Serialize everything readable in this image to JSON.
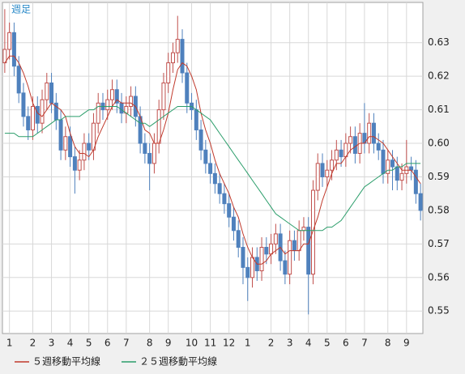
{
  "chart_data": {
    "type": "candlestick",
    "label": "週足",
    "categories": [
      null,
      "1",
      null,
      null,
      null,
      null,
      "2",
      null,
      null,
      null,
      "3",
      null,
      null,
      null,
      "4",
      null,
      null,
      null,
      "5",
      null,
      null,
      null,
      "6",
      null,
      null,
      null,
      "7",
      null,
      null,
      null,
      null,
      "8",
      null,
      null,
      null,
      "9",
      null,
      null,
      null,
      null,
      "10",
      null,
      null,
      null,
      "11",
      null,
      null,
      null,
      "12",
      null,
      null,
      null,
      "1",
      null,
      null,
      null,
      null,
      "2",
      null,
      null,
      null,
      "3",
      null,
      null,
      null,
      "4",
      null,
      null,
      null,
      "5",
      null,
      null,
      null,
      "6",
      null,
      null,
      null,
      "7",
      null,
      null,
      null,
      null,
      "8",
      null,
      null,
      null,
      "9",
      null,
      null,
      null
    ],
    "open": [
      0.624,
      0.628,
      0.633,
      0.623,
      0.615,
      0.608,
      0.604,
      0.611,
      0.606,
      0.613,
      0.618,
      0.612,
      0.607,
      0.598,
      0.602,
      0.596,
      0.592,
      0.595,
      0.6,
      0.598,
      0.606,
      0.612,
      0.61,
      0.613,
      0.616,
      0.612,
      0.609,
      0.611,
      0.614,
      0.608,
      0.6,
      0.597,
      0.594,
      0.6,
      0.61,
      0.618,
      0.624,
      0.627,
      0.631,
      0.621,
      0.612,
      0.61,
      0.604,
      0.598,
      0.594,
      0.591,
      0.588,
      0.585,
      0.582,
      0.578,
      0.574,
      0.569,
      0.563,
      0.56,
      0.566,
      0.562,
      0.569,
      0.567,
      0.57,
      0.573,
      0.565,
      0.561,
      0.571,
      0.568,
      0.574,
      0.575,
      0.561,
      0.586,
      0.594,
      0.59,
      0.592,
      0.595,
      0.598,
      0.596,
      0.6,
      0.602,
      0.597,
      0.603,
      0.6,
      0.606,
      0.6,
      0.598,
      0.591,
      0.595,
      0.593,
      0.589,
      0.591,
      0.593,
      0.592,
      0.585
    ],
    "high": [
      0.64,
      0.636,
      0.636,
      0.626,
      0.618,
      0.611,
      0.614,
      0.614,
      0.616,
      0.621,
      0.621,
      0.615,
      0.61,
      0.605,
      0.605,
      0.599,
      0.598,
      0.603,
      0.603,
      0.609,
      0.615,
      0.615,
      0.616,
      0.619,
      0.619,
      0.615,
      0.614,
      0.617,
      0.617,
      0.611,
      0.603,
      0.6,
      0.603,
      0.613,
      0.621,
      0.627,
      0.63,
      0.638,
      0.634,
      0.624,
      0.615,
      0.613,
      0.607,
      0.601,
      0.597,
      0.594,
      0.591,
      0.588,
      0.585,
      0.581,
      0.577,
      0.572,
      0.566,
      0.569,
      0.569,
      0.572,
      0.572,
      0.573,
      0.576,
      0.576,
      0.568,
      0.574,
      0.574,
      0.577,
      0.578,
      0.578,
      0.589,
      0.597,
      0.597,
      0.595,
      0.598,
      0.601,
      0.601,
      0.603,
      0.605,
      0.605,
      0.606,
      0.612,
      0.609,
      0.609,
      0.603,
      0.601,
      0.598,
      0.598,
      0.596,
      0.594,
      0.601,
      0.596,
      0.595,
      0.588
    ],
    "low": [
      0.621,
      0.625,
      0.62,
      0.612,
      0.605,
      0.601,
      0.601,
      0.603,
      0.603,
      0.61,
      0.609,
      0.604,
      0.595,
      0.595,
      0.593,
      0.585,
      0.589,
      0.592,
      0.595,
      0.595,
      0.603,
      0.607,
      0.607,
      0.61,
      0.609,
      0.606,
      0.606,
      0.608,
      0.605,
      0.597,
      0.594,
      0.586,
      0.591,
      0.597,
      0.607,
      0.615,
      0.621,
      0.624,
      0.618,
      0.609,
      0.607,
      0.601,
      0.595,
      0.591,
      0.588,
      0.585,
      0.582,
      0.579,
      0.575,
      0.571,
      0.566,
      0.558,
      0.553,
      0.557,
      0.559,
      0.559,
      0.564,
      0.564,
      0.567,
      0.562,
      0.558,
      0.558,
      0.565,
      0.565,
      0.571,
      0.549,
      0.558,
      0.583,
      0.587,
      0.587,
      0.589,
      0.592,
      0.593,
      0.593,
      0.597,
      0.594,
      0.594,
      0.597,
      0.597,
      0.597,
      0.595,
      0.588,
      0.588,
      0.586,
      0.586,
      0.586,
      0.588,
      0.589,
      0.582,
      0.577
    ],
    "close": [
      0.628,
      0.633,
      0.623,
      0.615,
      0.608,
      0.604,
      0.611,
      0.606,
      0.613,
      0.618,
      0.612,
      0.607,
      0.598,
      0.602,
      0.596,
      0.592,
      0.595,
      0.6,
      0.598,
      0.606,
      0.612,
      0.61,
      0.613,
      0.616,
      0.612,
      0.609,
      0.611,
      0.614,
      0.608,
      0.6,
      0.597,
      0.594,
      0.6,
      0.61,
      0.618,
      0.624,
      0.627,
      0.631,
      0.621,
      0.612,
      0.61,
      0.604,
      0.598,
      0.594,
      0.591,
      0.588,
      0.585,
      0.582,
      0.578,
      0.574,
      0.569,
      0.563,
      0.56,
      0.566,
      0.562,
      0.569,
      0.567,
      0.57,
      0.573,
      0.565,
      0.561,
      0.571,
      0.568,
      0.574,
      0.575,
      0.561,
      0.586,
      0.594,
      0.59,
      0.592,
      0.595,
      0.598,
      0.596,
      0.6,
      0.602,
      0.597,
      0.603,
      0.6,
      0.606,
      0.6,
      0.598,
      0.591,
      0.595,
      0.593,
      0.589,
      0.591,
      0.593,
      0.592,
      0.585,
      0.58
    ],
    "up_color": "#c0504d",
    "down_color": "#4f81bd",
    "series": [
      {
        "name": "５週移動平均線",
        "color": "#c0392b",
        "values": [
          0.624,
          0.626,
          0.626,
          0.624,
          0.621,
          0.617,
          0.612,
          0.609,
          0.608,
          0.61,
          0.612,
          0.611,
          0.61,
          0.608,
          0.603,
          0.599,
          0.597,
          0.597,
          0.596,
          0.598,
          0.602,
          0.605,
          0.608,
          0.611,
          0.613,
          0.612,
          0.612,
          0.612,
          0.611,
          0.608,
          0.604,
          0.603,
          0.6,
          0.6,
          0.604,
          0.609,
          0.616,
          0.622,
          0.624,
          0.623,
          0.62,
          0.616,
          0.609,
          0.604,
          0.6,
          0.595,
          0.591,
          0.588,
          0.585,
          0.581,
          0.578,
          0.573,
          0.569,
          0.566,
          0.564,
          0.564,
          0.565,
          0.567,
          0.568,
          0.569,
          0.567,
          0.568,
          0.568,
          0.568,
          0.57,
          0.57,
          0.574,
          0.578,
          0.583,
          0.587,
          0.591,
          0.594,
          0.594,
          0.596,
          0.598,
          0.599,
          0.6,
          0.6,
          0.602,
          0.602,
          0.601,
          0.6,
          0.598,
          0.596,
          0.594,
          0.592,
          0.592,
          0.592,
          0.59,
          0.588
        ]
      },
      {
        "name": "２５週移動平均線",
        "color": "#2a9d6a",
        "values": [
          0.603,
          0.603,
          0.603,
          0.602,
          0.602,
          0.602,
          0.602,
          0.603,
          0.604,
          0.605,
          0.606,
          0.607,
          0.607,
          0.608,
          0.608,
          0.608,
          0.608,
          0.609,
          0.61,
          0.61,
          0.611,
          0.611,
          0.611,
          0.611,
          0.611,
          0.61,
          0.609,
          0.608,
          0.607,
          0.606,
          0.606,
          0.605,
          0.606,
          0.607,
          0.608,
          0.609,
          0.61,
          0.611,
          0.611,
          0.611,
          0.611,
          0.61,
          0.609,
          0.608,
          0.607,
          0.605,
          0.603,
          0.601,
          0.599,
          0.597,
          0.595,
          0.593,
          0.591,
          0.589,
          0.587,
          0.585,
          0.583,
          0.581,
          0.579,
          0.578,
          0.577,
          0.576,
          0.575,
          0.574,
          0.574,
          0.574,
          0.574,
          0.574,
          0.574,
          0.575,
          0.575,
          0.576,
          0.577,
          0.579,
          0.581,
          0.583,
          0.585,
          0.587,
          0.588,
          0.589,
          0.59,
          0.591,
          0.592,
          0.592,
          0.593,
          0.593,
          0.594,
          0.594,
          0.594,
          0.594
        ]
      }
    ],
    "ylim": [
      0.5433,
      0.642
    ],
    "yticks": [
      0.55,
      0.56,
      0.57,
      0.58,
      0.59,
      {
        "value": 0.6,
        "label": "0.60"
      },
      0.61,
      0.62,
      0.63
    ],
    "grid": true
  }
}
